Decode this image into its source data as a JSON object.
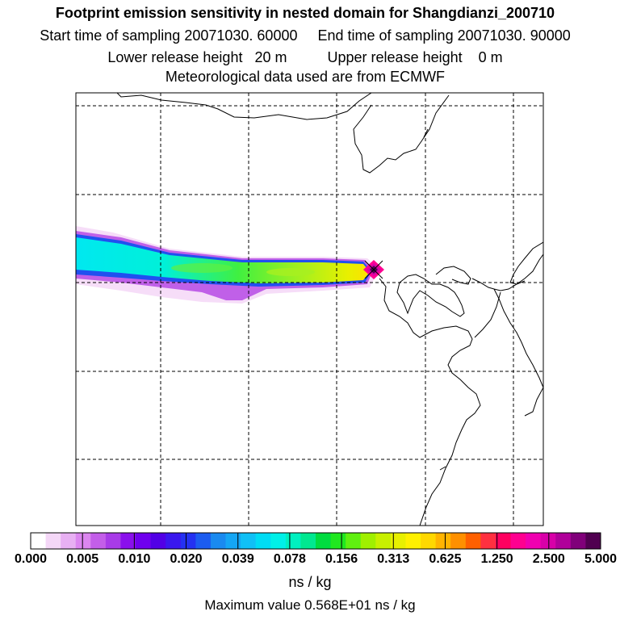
{
  "header": {
    "title": "Footprint emission sensitivity in nested domain for Shangdianzi_200710",
    "start_label": "Start time of sampling",
    "start_value": "20071030. 60000",
    "end_label": "End time of sampling",
    "end_value": "20071030. 90000",
    "lower_label": "Lower release height",
    "lower_value": "20 m",
    "upper_label": "Upper release height",
    "upper_value": "0 m",
    "met_text": "Meteorological data used are from ECMWF"
  },
  "chart_data": {
    "type": "heatmap",
    "description_units": "ns / kg",
    "colorbar": {
      "tick_labels": [
        "0.000",
        "0.005",
        "0.010",
        "0.020",
        "0.039",
        "0.078",
        "0.156",
        "0.313",
        "0.625",
        "1.250",
        "2.500",
        "5.000"
      ],
      "colors": [
        "#ffffff",
        "#f4d7f7",
        "#e8b0f3",
        "#dc86f0",
        "#c35ee9",
        "#a83be8",
        "#8a10ec",
        "#6f00ee",
        "#5200e6",
        "#3a17ee",
        "#2431f2",
        "#1c5cf0",
        "#1a8af0",
        "#15a6f4",
        "#10c0f6",
        "#00dcf4",
        "#00f0e8",
        "#00f0c0",
        "#00e890",
        "#00dc40",
        "#20e820",
        "#60f010",
        "#a0f000",
        "#c8f000",
        "#e8f000",
        "#fff000",
        "#ffd800",
        "#ffb400",
        "#ff9000",
        "#ff6000",
        "#ff3040",
        "#ff0060",
        "#ff0090",
        "#f000b0",
        "#d800a8",
        "#b0009a",
        "#80007a",
        "#500050"
      ],
      "units": "ns / kg"
    },
    "max_value_text": "Maximum value  0.568E+01 ns / kg",
    "receptor_marker": "Shangdianzi",
    "gridlines": true
  },
  "footer": {
    "units": "ns / kg",
    "max_value": "Maximum value  0.568E+01 ns / kg"
  }
}
